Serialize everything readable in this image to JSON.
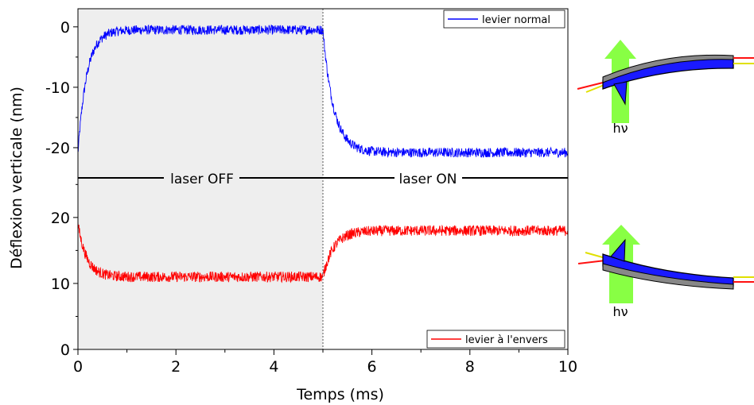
{
  "chart_data": {
    "type": "line",
    "xlabel": "Temps (ms)",
    "ylabel": "Déflexion verticale (nm)",
    "xlim": [
      0,
      10
    ],
    "x_ticks": [
      "0",
      "2",
      "4",
      "6",
      "8",
      "10"
    ],
    "top_panel": {
      "ylim": [
        -25,
        3
      ],
      "y_ticks": [
        "0",
        "-10",
        "-20"
      ],
      "y_tick_values": [
        0,
        -10,
        -20
      ]
    },
    "bottom_panel": {
      "ylim": [
        0,
        26
      ],
      "y_ticks": [
        "0",
        "10",
        "20"
      ],
      "y_tick_values": [
        0,
        10,
        20
      ]
    },
    "shaded_region": {
      "from": 0,
      "to": 5,
      "color": "#eeeeee"
    },
    "switch_time": 5,
    "phase_labels": {
      "off": "laser OFF",
      "on": "laser ON"
    },
    "series": [
      {
        "name": "levier normal",
        "panel": "top",
        "color": "#0000ff",
        "legend_position": "top-right",
        "start": -21,
        "off_level": -0.5,
        "on_level": -20.8,
        "tau_off": 0.18,
        "tau_on": 0.22,
        "noise": 1.6
      },
      {
        "name": "levier à l'envers",
        "panel": "bottom",
        "color": "#ff0000",
        "legend_position": "bottom-right",
        "start": 19,
        "off_level": 11,
        "on_level": 18,
        "tau_off": 0.18,
        "tau_on": 0.22,
        "noise": 1.6
      }
    ]
  },
  "diagrams": {
    "top": {
      "label": "hν",
      "arrow_color": "#88ff44",
      "beam_color": "#ff1111",
      "reflect_color": "#e0e000",
      "body_color": "#1a1aff",
      "coating_color": "#888888"
    },
    "bottom": {
      "label": "hν",
      "arrow_color": "#88ff44",
      "beam_color": "#ff1111",
      "reflect_color": "#e0e000",
      "body_color": "#1a1aff",
      "coating_color": "#888888"
    }
  }
}
